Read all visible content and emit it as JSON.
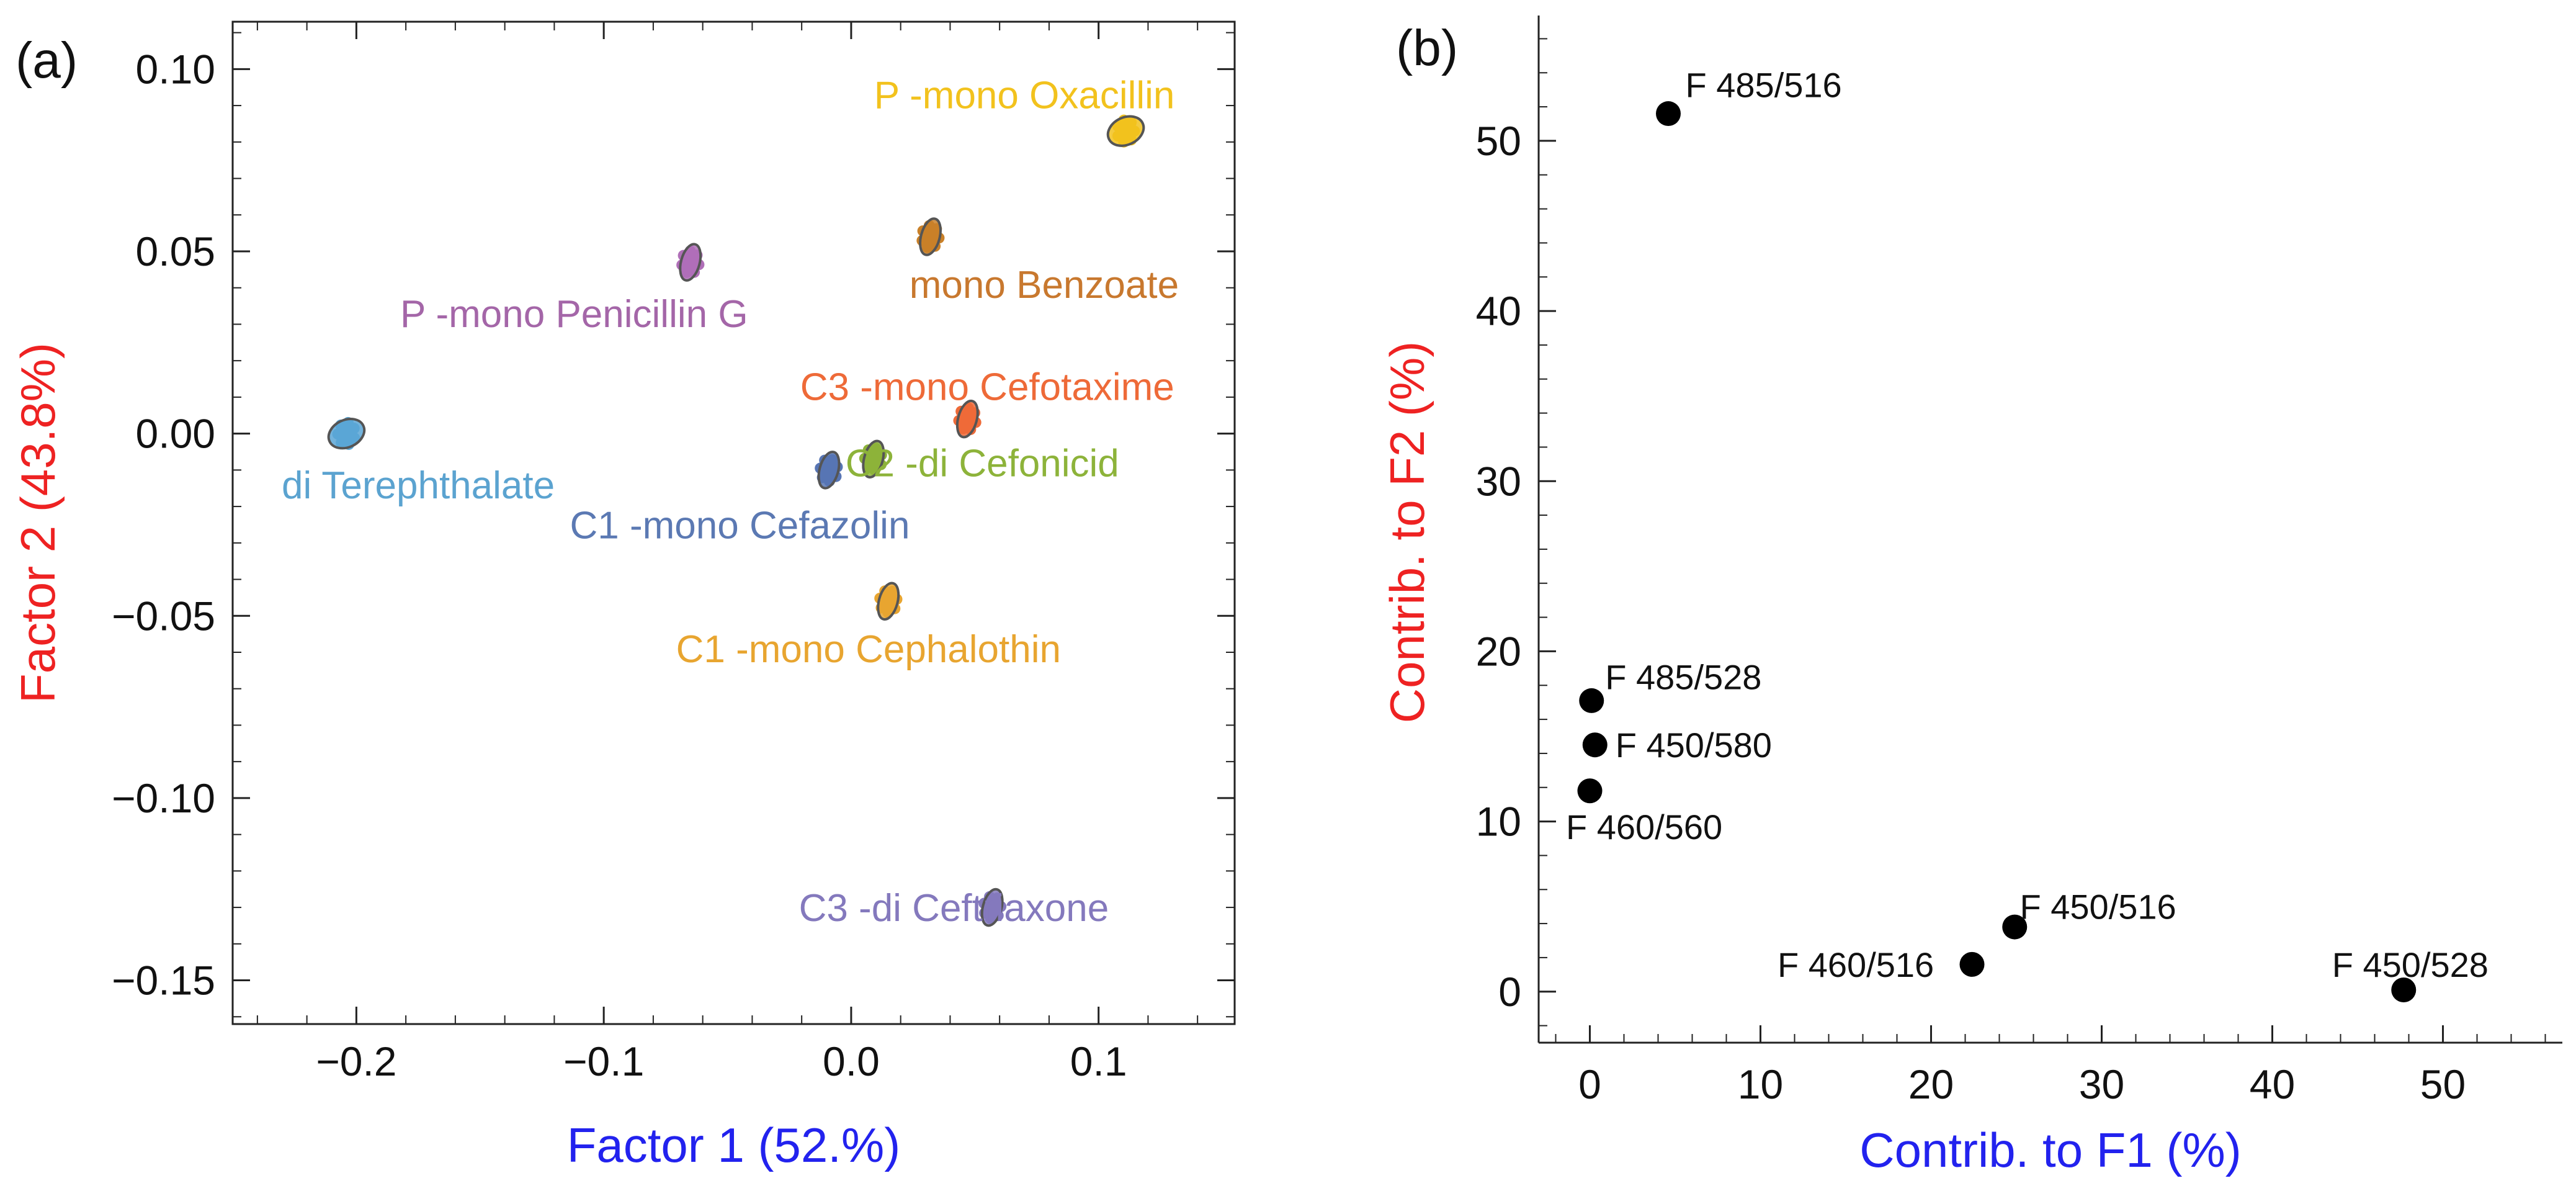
{
  "chart_data": [
    {
      "panel": "(a)",
      "type": "scatter",
      "xlabel": "Factor 1 (52.%)",
      "ylabel": "Factor 2 (43.8%)",
      "xlabel_color": "#2222ee",
      "ylabel_color": "#ee2222",
      "xlim": [
        -0.25,
        0.155
      ],
      "ylim": [
        -0.162,
        0.113
      ],
      "x_ticks": [
        {
          "v": -0.2,
          "label": "−0.2"
        },
        {
          "v": -0.1,
          "label": "−0.1"
        },
        {
          "v": 0.0,
          "label": "0.0"
        },
        {
          "v": 0.1,
          "label": "0.1"
        }
      ],
      "y_ticks": [
        {
          "v": 0.1,
          "label": "0.10"
        },
        {
          "v": 0.05,
          "label": "0.05"
        },
        {
          "v": 0.0,
          "label": "0.00"
        },
        {
          "v": -0.05,
          "label": "−0.05"
        },
        {
          "v": -0.1,
          "label": "−0.10"
        },
        {
          "v": -0.15,
          "label": "−0.15"
        }
      ],
      "series": [
        {
          "name": "P -mono Oxacillin",
          "x": 0.111,
          "y": 0.083,
          "color": "#f2c21d",
          "label_color": "#f2c21d",
          "lx": 0.07,
          "ly": 0.093
        },
        {
          "name": "mono Benzoate",
          "x": 0.032,
          "y": 0.054,
          "color": "#c98028",
          "label_color": "#c8782e",
          "lx": 0.078,
          "ly": 0.041
        },
        {
          "name": "P -mono Penicillin G",
          "x": -0.065,
          "y": 0.047,
          "color": "#b06fb8",
          "label_color": "#a466a8",
          "lx": -0.112,
          "ly": 0.033
        },
        {
          "name": "C3 -mono Cefotaxime",
          "x": 0.047,
          "y": 0.004,
          "color": "#ee6a38",
          "label_color": "#ee6a38",
          "lx": 0.055,
          "ly": 0.013
        },
        {
          "name": "di Terephthalate",
          "x": -0.204,
          "y": 0.0,
          "color": "#5aa6d6",
          "label_color": "#5ba3d0",
          "lx": -0.175,
          "ly": -0.014
        },
        {
          "name": "C2 -di Cefonicid",
          "x": 0.009,
          "y": -0.007,
          "color": "#8db33a",
          "label_color": "#8db33a",
          "lx": 0.053,
          "ly": -0.008
        },
        {
          "name": "C1 -mono Cefazolin",
          "x": -0.009,
          "y": -0.01,
          "color": "#5775b4",
          "label_color": "#5b79b3",
          "lx": -0.045,
          "ly": -0.025
        },
        {
          "name": "C1 -mono Cephalothin",
          "x": 0.015,
          "y": -0.046,
          "color": "#e8a530",
          "label_color": "#e8a530",
          "lx": 0.007,
          "ly": -0.059
        },
        {
          "name": "C3 -di Ceftriaxone",
          "x": 0.057,
          "y": -0.13,
          "color": "#8479bd",
          "label_color": "#8479bd",
          "lx": 0.0415,
          "ly": -0.13
        }
      ]
    },
    {
      "panel": "(b)",
      "type": "scatter",
      "xlabel": "Contrib. to F1 (%)",
      "ylabel": "Contrib. to F2 (%)",
      "xlabel_color": "#2222ee",
      "ylabel_color": "#ee2222",
      "xlim": [
        -3,
        57
      ],
      "ylim": [
        -3,
        57
      ],
      "x_ticks": [
        {
          "v": 0,
          "label": "0"
        },
        {
          "v": 10,
          "label": "10"
        },
        {
          "v": 20,
          "label": "20"
        },
        {
          "v": 30,
          "label": "30"
        },
        {
          "v": 40,
          "label": "40"
        },
        {
          "v": 50,
          "label": "50"
        }
      ],
      "y_ticks": [
        {
          "v": 0,
          "label": "0"
        },
        {
          "v": 10,
          "label": "10"
        },
        {
          "v": 20,
          "label": "20"
        },
        {
          "v": 30,
          "label": "30"
        },
        {
          "v": 40,
          "label": "40"
        },
        {
          "v": 50,
          "label": "50"
        }
      ],
      "points": [
        {
          "label": "F 485/516",
          "x": 4.6,
          "y": 51.6,
          "lx": 5.6,
          "ly": 53.3
        },
        {
          "label": "F 485/528",
          "x": 0.1,
          "y": 17.1,
          "lx": 0.9,
          "ly": 18.5
        },
        {
          "label": "F 450/580",
          "x": 0.3,
          "y": 14.5,
          "lx": 1.5,
          "ly": 14.5
        },
        {
          "label": "F 460/560",
          "x": 0.0,
          "y": 11.8,
          "lx": -1.4,
          "ly": 9.7
        },
        {
          "label": "F 450/516",
          "x": 24.9,
          "y": 3.8,
          "lx": 25.2,
          "ly": 5.0
        },
        {
          "label": "F 460/516",
          "x": 22.4,
          "y": 1.6,
          "lx": 11.0,
          "ly": 1.6
        },
        {
          "label": "F 450/528",
          "x": 47.7,
          "y": 0.1,
          "lx": 43.5,
          "ly": 1.6
        }
      ]
    }
  ]
}
